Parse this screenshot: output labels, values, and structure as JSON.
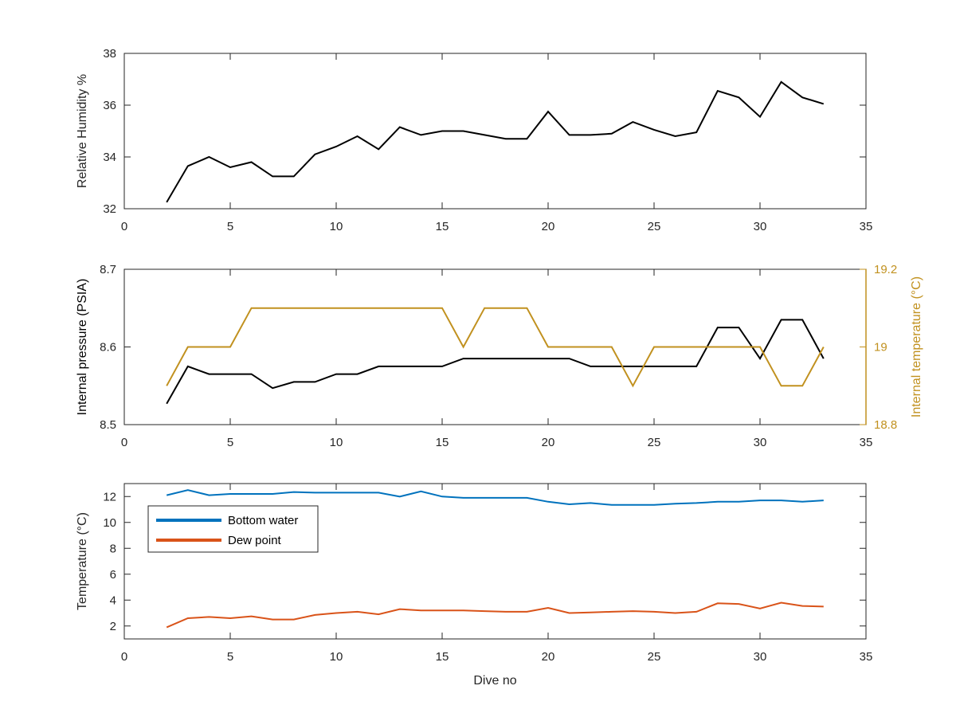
{
  "chart_data": [
    {
      "type": "line",
      "xlabel": "",
      "ylabel": "Relative Humidity %",
      "xlim": [
        0,
        35
      ],
      "ylim": [
        32,
        38
      ],
      "xticks": [
        0,
        5,
        10,
        15,
        20,
        25,
        30,
        35
      ],
      "yticks": [
        32,
        34,
        36,
        38
      ],
      "grid": false,
      "series": [
        {
          "color": "#000000",
          "x": [
            2,
            3,
            4,
            5,
            6,
            7,
            8,
            9,
            10,
            11,
            12,
            13,
            14,
            15,
            16,
            17,
            18,
            19,
            20,
            21,
            22,
            23,
            24,
            25,
            26,
            27,
            28,
            29,
            30,
            31,
            32,
            33
          ],
          "values": [
            32.25,
            33.65,
            34.0,
            33.6,
            33.8,
            33.25,
            33.25,
            34.1,
            34.4,
            34.8,
            34.3,
            35.15,
            34.85,
            35.0,
            35.0,
            34.85,
            34.7,
            34.7,
            35.75,
            34.85,
            34.85,
            34.9,
            35.35,
            35.05,
            34.8,
            34.95,
            36.55,
            36.3,
            35.55,
            36.9,
            36.3,
            36.05
          ]
        }
      ]
    },
    {
      "type": "line",
      "xlabel": "",
      "ylabel": "Internal pressure (PSIA)",
      "y2label": "Internal temperature (°C)",
      "xlim": [
        0,
        35
      ],
      "ylim": [
        8.5,
        8.7
      ],
      "y2lim": [
        18.8,
        19.2
      ],
      "xticks": [
        0,
        5,
        10,
        15,
        20,
        25,
        30,
        35
      ],
      "yticks": [
        "8.5",
        "8.6",
        "8.7"
      ],
      "y2ticks": [
        "18.8",
        "19",
        "19.2"
      ],
      "grid": false,
      "series": [
        {
          "axis": "left",
          "color": "#000000",
          "x": [
            2,
            3,
            4,
            5,
            6,
            7,
            8,
            9,
            10,
            11,
            12,
            13,
            14,
            15,
            16,
            17,
            18,
            19,
            20,
            21,
            22,
            23,
            24,
            25,
            26,
            27,
            28,
            29,
            30,
            31,
            32,
            33
          ],
          "values": [
            8.527,
            8.575,
            8.565,
            8.565,
            8.565,
            8.547,
            8.555,
            8.555,
            8.565,
            8.565,
            8.575,
            8.575,
            8.575,
            8.575,
            8.585,
            8.585,
            8.585,
            8.585,
            8.585,
            8.585,
            8.575,
            8.575,
            8.575,
            8.575,
            8.575,
            8.575,
            8.625,
            8.625,
            8.585,
            8.635,
            8.635,
            8.585
          ]
        },
        {
          "axis": "right",
          "color": "#c1911f",
          "x": [
            2,
            3,
            4,
            5,
            6,
            7,
            8,
            9,
            10,
            11,
            12,
            13,
            14,
            15,
            16,
            17,
            18,
            19,
            20,
            21,
            22,
            23,
            24,
            25,
            26,
            27,
            28,
            29,
            30,
            31,
            32,
            33
          ],
          "values": [
            18.9,
            19.0,
            19.0,
            19.0,
            19.1,
            19.1,
            19.1,
            19.1,
            19.1,
            19.1,
            19.1,
            19.1,
            19.1,
            19.1,
            19.0,
            19.1,
            19.1,
            19.1,
            19.0,
            19.0,
            19.0,
            19.0,
            18.9,
            19.0,
            19.0,
            19.0,
            19.0,
            19.0,
            19.0,
            18.9,
            18.9,
            19.0
          ]
        }
      ]
    },
    {
      "type": "line",
      "xlabel": "Dive no",
      "ylabel": "Temperature (°C)",
      "xlim": [
        0,
        35
      ],
      "ylim": [
        1,
        13
      ],
      "xticks": [
        0,
        5,
        10,
        15,
        20,
        25,
        30,
        35
      ],
      "yticks": [
        2,
        4,
        6,
        8,
        10,
        12
      ],
      "grid": false,
      "legend": "top-left",
      "series": [
        {
          "name": "Bottom water",
          "color": "#0072bd",
          "x": [
            2,
            3,
            4,
            5,
            6,
            7,
            8,
            9,
            10,
            11,
            12,
            13,
            14,
            15,
            16,
            17,
            18,
            19,
            20,
            21,
            22,
            23,
            24,
            25,
            26,
            27,
            28,
            29,
            30,
            31,
            32,
            33
          ],
          "values": [
            12.1,
            12.5,
            12.1,
            12.2,
            12.2,
            12.2,
            12.35,
            12.3,
            12.3,
            12.3,
            12.3,
            12.0,
            12.4,
            12.0,
            11.9,
            11.9,
            11.9,
            11.9,
            11.6,
            11.4,
            11.5,
            11.35,
            11.35,
            11.35,
            11.45,
            11.5,
            11.6,
            11.6,
            11.7,
            11.7,
            11.6,
            11.7
          ]
        },
        {
          "name": "Dew point",
          "color": "#d95319",
          "x": [
            2,
            3,
            4,
            5,
            6,
            7,
            8,
            9,
            10,
            11,
            12,
            13,
            14,
            15,
            16,
            17,
            18,
            19,
            20,
            21,
            22,
            23,
            24,
            25,
            26,
            27,
            28,
            29,
            30,
            31,
            32,
            33
          ],
          "values": [
            1.9,
            2.6,
            2.7,
            2.6,
            2.75,
            2.5,
            2.5,
            2.85,
            3.0,
            3.1,
            2.9,
            3.3,
            3.2,
            3.2,
            3.2,
            3.15,
            3.1,
            3.1,
            3.4,
            3.0,
            3.05,
            3.1,
            3.15,
            3.1,
            3.0,
            3.1,
            3.75,
            3.7,
            3.35,
            3.8,
            3.55,
            3.5
          ]
        }
      ]
    }
  ]
}
